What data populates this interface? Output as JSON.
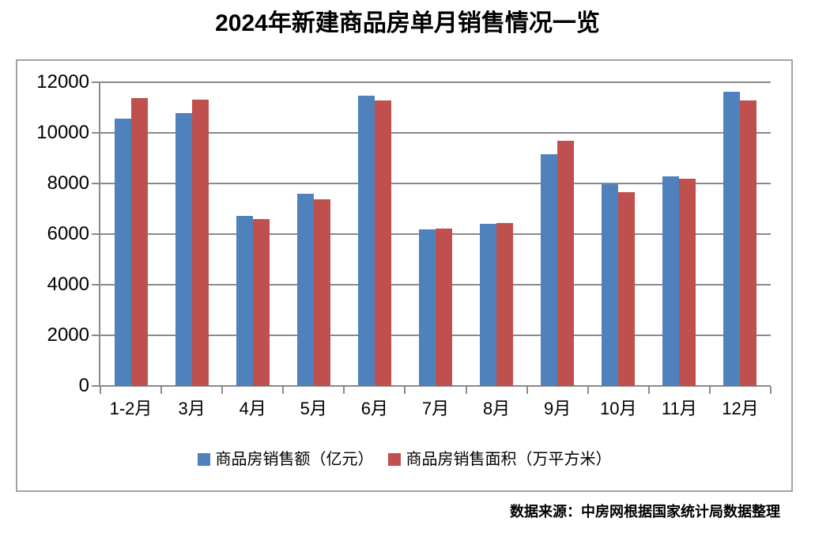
{
  "page": {
    "source_note": "数据来源：中房网根据国家统计局数据整理"
  },
  "chart_data": {
    "type": "bar",
    "title": "2024年新建商品房单月销售情况一览",
    "categories": [
      "1-2月",
      "3月",
      "4月",
      "5月",
      "6月",
      "7月",
      "8月",
      "9月",
      "10月",
      "11月",
      "12月"
    ],
    "series": [
      {
        "name": "商品房销售额（亿元）",
        "color": "#4F81BD",
        "values": [
          10566,
          10789,
          6712,
          7598,
          11468,
          6197,
          6393,
          9157,
          7975,
          8270,
          11625
        ]
      },
      {
        "name": "商品房销售面积（万平方米）",
        "color": "#C0504D",
        "values": [
          11369,
          11299,
          6584,
          7390,
          11274,
          6233,
          6453,
          9682,
          7646,
          8188,
          11267
        ]
      }
    ],
    "xlabel": "",
    "ylabel": "",
    "ylim": [
      0,
      12000
    ],
    "ytick_step": 2000,
    "y_tick_labels": [
      "0",
      "2000",
      "4000",
      "6000",
      "8000",
      "10000",
      "12000"
    ],
    "grid": "horizontal",
    "legend_position": "bottom",
    "colors": {
      "gridline": "#8a8a8a",
      "frame_border": "#a3a3a3",
      "text": "#000000",
      "background": "#ffffff"
    }
  }
}
